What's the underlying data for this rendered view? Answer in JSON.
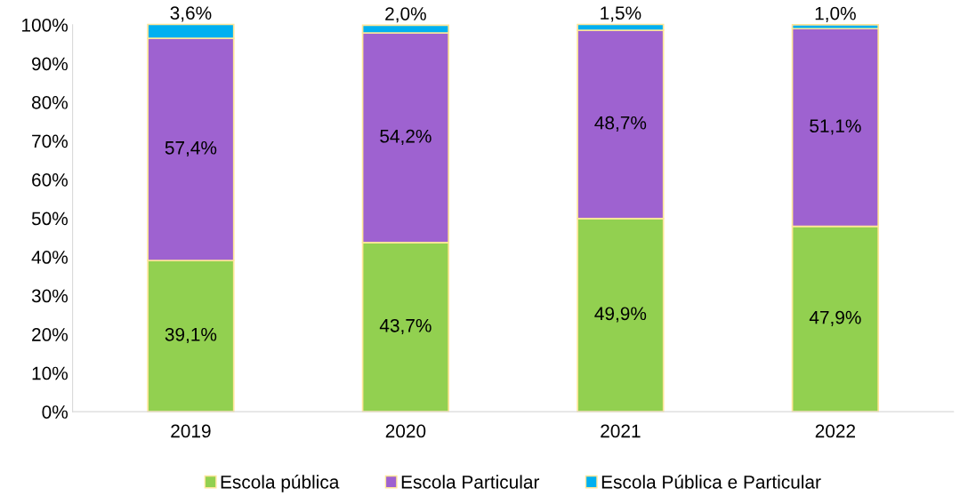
{
  "chart_data": {
    "type": "bar",
    "stacked": true,
    "categories": [
      "2019",
      "2020",
      "2021",
      "2022"
    ],
    "series": [
      {
        "name": "Escola pública",
        "color": "#92d050",
        "values": [
          39.1,
          43.7,
          49.9,
          47.9
        ],
        "value_labels": [
          "39,1%",
          "43,7%",
          "49,9%",
          "47,9%"
        ]
      },
      {
        "name": "Escola Particular",
        "color": "#9e62d0",
        "values": [
          57.4,
          54.2,
          48.7,
          51.1
        ],
        "value_labels": [
          "57,4%",
          "54,2%",
          "48,7%",
          "51,1%"
        ]
      },
      {
        "name": "Escola Pública e Particular",
        "color": "#00b0f0",
        "values": [
          3.6,
          2.0,
          1.5,
          1.0
        ],
        "value_labels": [
          "3,6%",
          "2,0%",
          "1,5%",
          "1,0%"
        ]
      }
    ],
    "ylim": [
      0,
      100
    ],
    "yticks": [
      {
        "value": 0,
        "label": "0%"
      },
      {
        "value": 10,
        "label": "10%"
      },
      {
        "value": 20,
        "label": "20%"
      },
      {
        "value": 30,
        "label": "30%"
      },
      {
        "value": 40,
        "label": "40%"
      },
      {
        "value": 50,
        "label": "50%"
      },
      {
        "value": 60,
        "label": "60%"
      },
      {
        "value": 70,
        "label": "70%"
      },
      {
        "value": 80,
        "label": "80%"
      },
      {
        "value": 90,
        "label": "90%"
      },
      {
        "value": 100,
        "label": "100%"
      }
    ],
    "grid": false,
    "legend": "bottom"
  }
}
